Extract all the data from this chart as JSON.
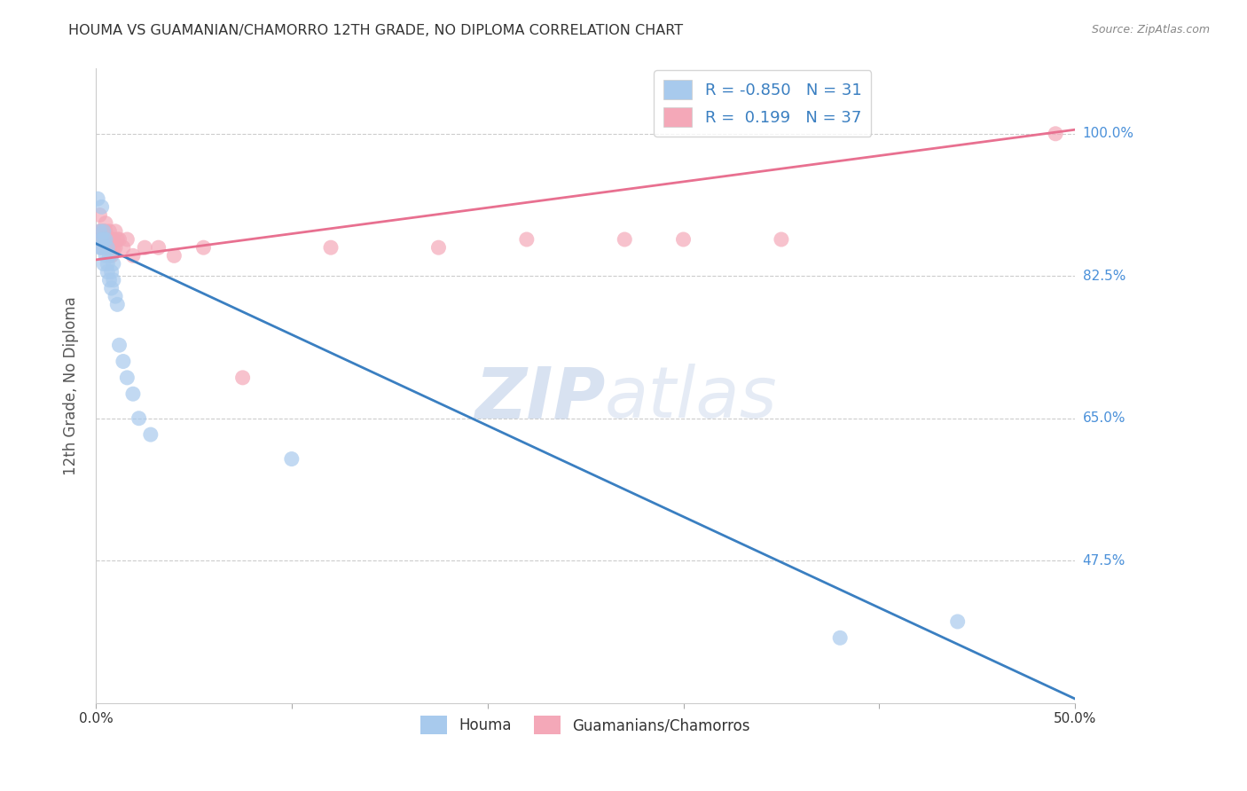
{
  "title": "HOUMA VS GUAMANIAN/CHAMORRO 12TH GRADE, NO DIPLOMA CORRELATION CHART",
  "source": "Source: ZipAtlas.com",
  "ylabel": "12th Grade, No Diploma",
  "ylabel_ticks": [
    "100.0%",
    "82.5%",
    "65.0%",
    "47.5%"
  ],
  "ylabel_tick_vals": [
    1.0,
    0.825,
    0.65,
    0.475
  ],
  "watermark_zip": "ZIP",
  "watermark_atlas": "atlas",
  "legend_r_houma": "-0.850",
  "legend_n_houma": "31",
  "legend_r_guam": " 0.199",
  "legend_n_guam": "37",
  "houma_color": "#A8CAED",
  "guam_color": "#F4A8B8",
  "houma_line_color": "#3A7FC1",
  "guam_line_color": "#E87090",
  "background_color": "#FFFFFF",
  "grid_color": "#CCCCCC",
  "title_color": "#333333",
  "right_label_color": "#4A90D9",
  "xlim": [
    0.0,
    0.5
  ],
  "ylim": [
    0.3,
    1.08
  ],
  "houma_scatter_x": [
    0.001,
    0.002,
    0.002,
    0.003,
    0.003,
    0.003,
    0.004,
    0.004,
    0.004,
    0.005,
    0.005,
    0.006,
    0.006,
    0.006,
    0.007,
    0.007,
    0.008,
    0.008,
    0.009,
    0.009,
    0.01,
    0.011,
    0.012,
    0.014,
    0.016,
    0.019,
    0.022,
    0.028,
    0.1,
    0.38,
    0.44
  ],
  "houma_scatter_y": [
    0.92,
    0.88,
    0.86,
    0.91,
    0.87,
    0.86,
    0.88,
    0.87,
    0.84,
    0.87,
    0.85,
    0.86,
    0.84,
    0.83,
    0.85,
    0.82,
    0.83,
    0.81,
    0.84,
    0.82,
    0.8,
    0.79,
    0.74,
    0.72,
    0.7,
    0.68,
    0.65,
    0.63,
    0.6,
    0.38,
    0.4
  ],
  "guam_scatter_x": [
    0.001,
    0.002,
    0.002,
    0.003,
    0.003,
    0.004,
    0.004,
    0.005,
    0.005,
    0.005,
    0.006,
    0.006,
    0.007,
    0.007,
    0.008,
    0.008,
    0.009,
    0.009,
    0.01,
    0.01,
    0.011,
    0.012,
    0.014,
    0.016,
    0.019,
    0.025,
    0.032,
    0.04,
    0.055,
    0.075,
    0.12,
    0.175,
    0.22,
    0.27,
    0.3,
    0.35,
    0.49
  ],
  "guam_scatter_y": [
    0.87,
    0.9,
    0.88,
    0.88,
    0.86,
    0.88,
    0.87,
    0.89,
    0.88,
    0.87,
    0.87,
    0.86,
    0.88,
    0.86,
    0.87,
    0.85,
    0.87,
    0.86,
    0.88,
    0.86,
    0.87,
    0.87,
    0.86,
    0.87,
    0.85,
    0.86,
    0.86,
    0.85,
    0.86,
    0.7,
    0.86,
    0.86,
    0.87,
    0.87,
    0.87,
    0.87,
    1.0
  ],
  "houma_line_x0": 0.0,
  "houma_line_x1": 0.5,
  "houma_line_y0": 0.865,
  "houma_line_y1": 0.305,
  "guam_line_x0": 0.0,
  "guam_line_x1": 0.5,
  "guam_line_y0": 0.845,
  "guam_line_y1": 1.005
}
